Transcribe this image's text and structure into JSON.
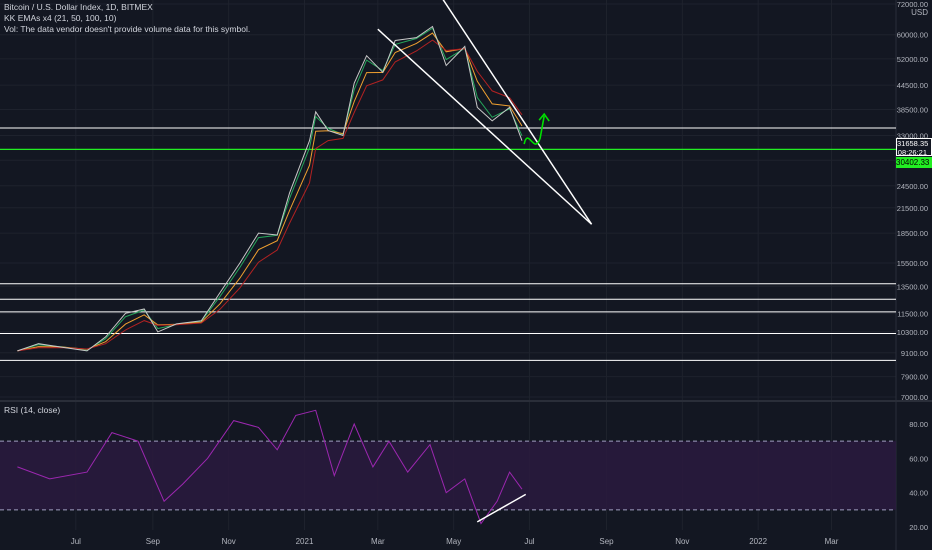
{
  "legend": {
    "symbol": "Bitcoin / U.S. Dollar Index, 1D, BITMEX",
    "indicator": "KK EMAs x4 (21, 50, 100, 10)",
    "volume_note": "Vol: The data vendor doesn't provide volume data for this symbol."
  },
  "rsi_legend": "RSI (14, close)",
  "currency": "USD",
  "price_tags": {
    "current": "31658.35",
    "countdown": "08:26:21",
    "support": "30402.33"
  },
  "colors": {
    "background": "#131722",
    "price_line": "#ffffff",
    "support_line": "#22ee22",
    "ema_fast": "#26a65b",
    "ema_mid": "#f0a030",
    "ema_slow": "#b22222",
    "rsi": "#9c27b0",
    "rsi_band": "#2a1a3e",
    "arrow": "#00e000"
  },
  "chart_data": {
    "type": "line",
    "title": "Bitcoin / U.S. Dollar Index, 1D, BITMEX",
    "y_axis_scale": "log",
    "y_ticks": [
      "72000.00",
      "60000.00",
      "52000.00",
      "44500.00",
      "38500.00",
      "33000.00",
      "28500.00",
      "24500.00",
      "21500.00",
      "18500.00",
      "15500.00",
      "13500.00",
      "11500.00",
      "10300.00",
      "9100.00",
      "7900.00",
      "7000.00"
    ],
    "y_tick_values": [
      72000,
      60000,
      52000,
      44500,
      38500,
      33000,
      28500,
      24500,
      21500,
      18500,
      15500,
      13500,
      11500,
      10300,
      9100,
      7900,
      7000
    ],
    "x_ticks": [
      "Jul",
      "Sep",
      "Nov",
      "2021",
      "Mar",
      "May",
      "Jul",
      "Sep",
      "Nov",
      "2022",
      "Mar"
    ],
    "x_tick_dates": [
      "2020-07-01",
      "2020-09-01",
      "2020-11-01",
      "2021-01-01",
      "2021-03-01",
      "2021-05-01",
      "2021-07-01",
      "2021-09-01",
      "2021-11-01",
      "2022-01-01",
      "2022-03-01"
    ],
    "horizontal_levels": [
      34500,
      30402.33,
      13700,
      12500,
      11600,
      10200,
      8700
    ],
    "price_series": {
      "name": "",
      "dates": [
        "2020-05-15",
        "2020-06-01",
        "2020-06-20",
        "2020-07-10",
        "2020-07-25",
        "2020-08-10",
        "2020-08-25",
        "2020-09-05",
        "2020-09-20",
        "2020-10-10",
        "2020-10-25",
        "2020-11-10",
        "2020-11-25",
        "2020-12-10",
        "2020-12-20",
        "2021-01-05",
        "2021-01-10",
        "2021-01-20",
        "2021-02-01",
        "2021-02-10",
        "2021-02-20",
        "2021-03-05",
        "2021-03-15",
        "2021-04-01",
        "2021-04-14",
        "2021-04-25",
        "2021-05-10",
        "2021-05-20",
        "2021-06-01",
        "2021-06-15",
        "2021-06-25"
      ],
      "values": [
        9200,
        9600,
        9400,
        9200,
        10000,
        11500,
        11800,
        10300,
        10800,
        11000,
        13000,
        15500,
        18500,
        18300,
        23500,
        32000,
        38000,
        34000,
        33000,
        45000,
        53000,
        48000,
        58000,
        59000,
        63000,
        50000,
        56000,
        39000,
        36000,
        39000,
        32000
      ]
    },
    "trendlines": [
      {
        "label": "upper",
        "from": [
          "2021-04-20",
          76000
        ],
        "to": [
          "2021-08-20",
          19500
        ]
      },
      {
        "label": "lower",
        "from": [
          "2021-03-01",
          62000
        ],
        "to": [
          "2021-08-20",
          19500
        ]
      }
    ],
    "rsi": {
      "title": "RSI (14, close)",
      "y_ticks": [
        "80.00",
        "60.00",
        "40.00",
        "20.00"
      ],
      "y_tick_values": [
        80,
        60,
        40,
        20
      ],
      "band": [
        30,
        70
      ],
      "dates": [
        "2020-05-15",
        "2020-06-10",
        "2020-07-10",
        "2020-07-30",
        "2020-08-20",
        "2020-09-10",
        "2020-09-25",
        "2020-10-15",
        "2020-11-05",
        "2020-11-25",
        "2020-12-10",
        "2020-12-25",
        "2021-01-10",
        "2021-01-25",
        "2021-02-10",
        "2021-02-25",
        "2021-03-10",
        "2021-03-25",
        "2021-04-12",
        "2021-04-25",
        "2021-05-10",
        "2021-05-23",
        "2021-06-05",
        "2021-06-15",
        "2021-06-25"
      ],
      "values": [
        55,
        48,
        52,
        75,
        70,
        35,
        45,
        60,
        82,
        78,
        65,
        85,
        88,
        50,
        80,
        55,
        70,
        52,
        68,
        40,
        48,
        22,
        35,
        52,
        42
      ],
      "divergence_line": {
        "from": [
          "2021-05-20",
          23
        ],
        "to": [
          "2021-06-28",
          39
        ]
      }
    }
  }
}
